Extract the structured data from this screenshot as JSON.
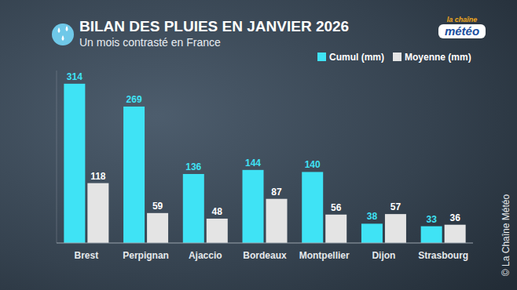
{
  "chart_data": {
    "type": "bar",
    "title": "BILAN DES PLUIES EN JANVIER 2026",
    "subtitle": "Un mois contrasté en France",
    "categories": [
      "Brest",
      "Perpignan",
      "Ajaccio",
      "Bordeaux",
      "Montpellier",
      "Dijon",
      "Strasbourg"
    ],
    "series": [
      {
        "name": "Cumul (mm)",
        "color": "#3fe3f5",
        "values": [
          314,
          269,
          136,
          144,
          140,
          38,
          33
        ]
      },
      {
        "name": "Moyenne (mm)",
        "color": "#e4e4e4",
        "values": [
          118,
          59,
          48,
          87,
          56,
          57,
          36
        ]
      }
    ],
    "ylim": [
      0,
      340
    ],
    "tick_labels": "x",
    "grid": false,
    "legend": "top-right",
    "data_labels": true,
    "logo": {
      "line1": "la chaîne",
      "line2": "météo"
    },
    "source": "© La Chaîne Météo"
  }
}
